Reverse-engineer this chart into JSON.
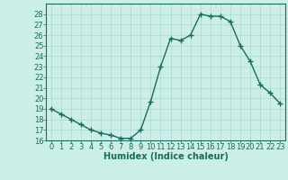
{
  "x": [
    0,
    1,
    2,
    3,
    4,
    5,
    6,
    7,
    8,
    9,
    10,
    11,
    12,
    13,
    14,
    15,
    16,
    17,
    18,
    19,
    20,
    21,
    22,
    23
  ],
  "y": [
    19.0,
    18.5,
    18.0,
    17.5,
    17.0,
    16.7,
    16.5,
    16.2,
    16.2,
    17.0,
    19.7,
    23.0,
    25.7,
    25.5,
    26.0,
    28.0,
    27.8,
    27.8,
    27.3,
    25.0,
    23.5,
    21.3,
    20.5,
    19.5
  ],
  "xlabel": "Humidex (Indice chaleur)",
  "ylim": [
    16,
    29
  ],
  "xlim": [
    -0.5,
    23.5
  ],
  "yticks": [
    16,
    17,
    18,
    19,
    20,
    21,
    22,
    23,
    24,
    25,
    26,
    27,
    28
  ],
  "xticks": [
    0,
    1,
    2,
    3,
    4,
    5,
    6,
    7,
    8,
    9,
    10,
    11,
    12,
    13,
    14,
    15,
    16,
    17,
    18,
    19,
    20,
    21,
    22,
    23
  ],
  "line_color": "#1a6b5a",
  "marker_color": "#1a6b5a",
  "bg_color": "#cceee8",
  "grid_color": "#aad8d0",
  "label_color": "#1a6b5a",
  "xlabel_fontsize": 7,
  "tick_fontsize": 6,
  "linewidth": 1.0,
  "markersize": 2.0
}
